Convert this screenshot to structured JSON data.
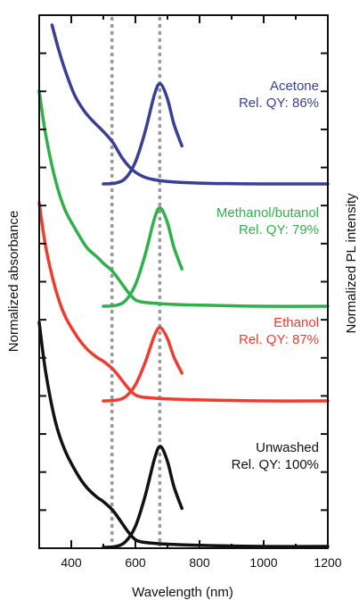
{
  "chart_data": {
    "type": "line",
    "title": "",
    "xlabel": "Wavelength (nm)",
    "ylabel_left": "Normalized absorbance",
    "ylabel_right": "Normalized PL intensity",
    "xlim": [
      300,
      1200
    ],
    "x_ticks": [
      400,
      600,
      800,
      1000,
      1200
    ],
    "reference_lines_nm": [
      527,
      676
    ],
    "grid": false,
    "legend": "none",
    "panels": [
      {
        "name": "Unwashed",
        "qy_label": "Rel. QY: 100%",
        "color": "#111111",
        "absorbance": [
          [
            300,
            1.0
          ],
          [
            320,
            0.78
          ],
          [
            350,
            0.56
          ],
          [
            380,
            0.43
          ],
          [
            420,
            0.32
          ],
          [
            450,
            0.26
          ],
          [
            480,
            0.22
          ],
          [
            500,
            0.2
          ],
          [
            530,
            0.16
          ],
          [
            560,
            0.1
          ],
          [
            580,
            0.06
          ],
          [
            600,
            0.03
          ],
          [
            620,
            0.02
          ],
          [
            650,
            0.015
          ],
          [
            700,
            0.01
          ],
          [
            800,
            0.005
          ],
          [
            1000,
            0.0
          ],
          [
            1200,
            0.0
          ]
        ],
        "pl": [
          [
            500,
            -0.01
          ],
          [
            540,
            0.0
          ],
          [
            570,
            0.05
          ],
          [
            600,
            0.2
          ],
          [
            630,
            0.5
          ],
          [
            660,
            0.88
          ],
          [
            678,
            1.0
          ],
          [
            700,
            0.85
          ],
          [
            720,
            0.6
          ],
          [
            745,
            0.38
          ]
        ]
      },
      {
        "name": "Ethanol",
        "qy_label": "Rel. QY: 87%",
        "color": "#ef3c2f",
        "absorbance": [
          [
            300,
            1.0
          ],
          [
            320,
            0.78
          ],
          [
            350,
            0.57
          ],
          [
            380,
            0.43
          ],
          [
            420,
            0.32
          ],
          [
            450,
            0.26
          ],
          [
            480,
            0.22
          ],
          [
            500,
            0.2
          ],
          [
            530,
            0.16
          ],
          [
            560,
            0.1
          ],
          [
            580,
            0.06
          ],
          [
            600,
            0.03
          ],
          [
            620,
            0.02
          ],
          [
            650,
            0.015
          ],
          [
            700,
            0.01
          ],
          [
            800,
            0.005
          ],
          [
            1000,
            0.0
          ],
          [
            1200,
            0.0
          ]
        ],
        "pl": [
          [
            500,
            0.0
          ],
          [
            540,
            0.01
          ],
          [
            570,
            0.06
          ],
          [
            600,
            0.22
          ],
          [
            630,
            0.52
          ],
          [
            660,
            0.9
          ],
          [
            678,
            1.0
          ],
          [
            700,
            0.85
          ],
          [
            720,
            0.6
          ],
          [
            745,
            0.38
          ]
        ]
      },
      {
        "name": "Methanol/butanol",
        "qy_label": "Rel. QY: 79%",
        "color": "#2fb04a",
        "absorbance": [
          [
            300,
            1.0
          ],
          [
            320,
            0.8
          ],
          [
            350,
            0.59
          ],
          [
            380,
            0.45
          ],
          [
            420,
            0.34
          ],
          [
            450,
            0.27
          ],
          [
            480,
            0.23
          ],
          [
            500,
            0.2
          ],
          [
            530,
            0.16
          ],
          [
            560,
            0.1
          ],
          [
            580,
            0.06
          ],
          [
            600,
            0.03
          ],
          [
            620,
            0.02
          ],
          [
            650,
            0.015
          ],
          [
            700,
            0.01
          ],
          [
            800,
            0.005
          ],
          [
            1000,
            0.0
          ],
          [
            1200,
            0.0
          ]
        ],
        "pl": [
          [
            500,
            0.0
          ],
          [
            540,
            0.01
          ],
          [
            570,
            0.06
          ],
          [
            600,
            0.22
          ],
          [
            630,
            0.52
          ],
          [
            660,
            0.9
          ],
          [
            678,
            1.0
          ],
          [
            700,
            0.85
          ],
          [
            720,
            0.6
          ],
          [
            745,
            0.38
          ]
        ]
      },
      {
        "name": "Acetone",
        "qy_label": "Rel. QY: 86%",
        "color": "#393f96",
        "absorbance": [
          [
            340,
            1.0
          ],
          [
            360,
            0.85
          ],
          [
            380,
            0.72
          ],
          [
            410,
            0.56
          ],
          [
            440,
            0.46
          ],
          [
            470,
            0.39
          ],
          [
            500,
            0.33
          ],
          [
            530,
            0.26
          ],
          [
            560,
            0.16
          ],
          [
            590,
            0.09
          ],
          [
            620,
            0.05
          ],
          [
            650,
            0.03
          ],
          [
            700,
            0.015
          ],
          [
            800,
            0.005
          ],
          [
            1000,
            0.0
          ],
          [
            1200,
            0.0
          ]
        ],
        "pl": [
          [
            500,
            0.0
          ],
          [
            540,
            0.01
          ],
          [
            570,
            0.06
          ],
          [
            600,
            0.22
          ],
          [
            630,
            0.52
          ],
          [
            660,
            0.9
          ],
          [
            678,
            1.0
          ],
          [
            700,
            0.85
          ],
          [
            720,
            0.6
          ],
          [
            745,
            0.38
          ]
        ]
      }
    ]
  }
}
